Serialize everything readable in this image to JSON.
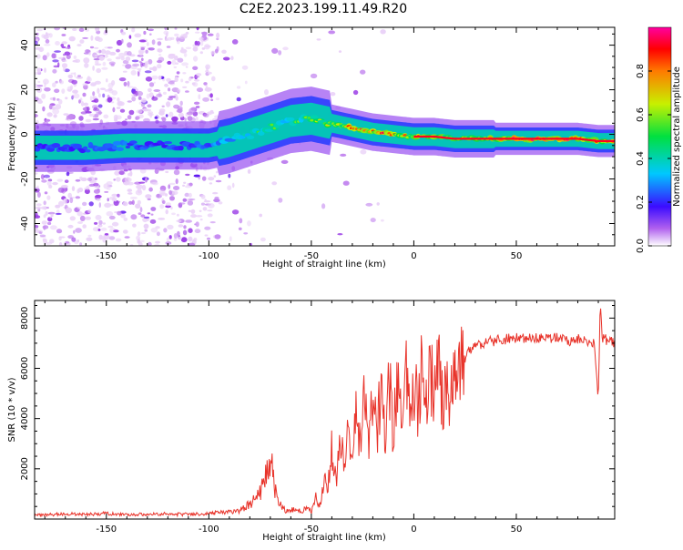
{
  "title": "C2E2.2023.199.11.49.R20",
  "chart_data": [
    {
      "type": "heatmap",
      "xlabel": "Height of straight line (km)",
      "ylabel": "Frequency (Hz)",
      "xlim": [
        -185,
        98
      ],
      "ylim": [
        -50,
        48
      ],
      "xticks": [
        -150,
        -100,
        -50,
        0,
        50
      ],
      "yticks": [
        -40,
        -20,
        0,
        20,
        40
      ],
      "colorbar": {
        "label": "Normalized spectral amplitude",
        "range": [
          0,
          1
        ],
        "ticks": [
          0.0,
          0.2,
          0.4,
          0.6,
          0.8
        ]
      },
      "ridge_track": {
        "x": [
          -185,
          -160,
          -140,
          -120,
          -100,
          -90,
          -80,
          -70,
          -60,
          -50,
          -40,
          -30,
          -20,
          -10,
          0,
          10,
          20,
          30,
          40,
          50,
          60,
          70,
          80,
          90,
          98
        ],
        "freq_hz": [
          -6,
          -6,
          -5,
          -5,
          -5,
          -3,
          0,
          3,
          6,
          7,
          5,
          3,
          1,
          0,
          -1,
          -1,
          -2,
          -2,
          -2,
          -2,
          -2,
          -2,
          -2,
          -3,
          -3
        ],
        "amplitude": [
          0.3,
          0.3,
          0.35,
          0.3,
          0.35,
          0.45,
          0.5,
          0.55,
          0.55,
          0.6,
          0.75,
          0.85,
          0.95,
          0.8,
          0.8,
          0.75,
          0.7,
          0.7,
          0.8,
          0.95,
          1.0,
          1.0,
          0.9,
          0.85,
          0.9
        ]
      }
    },
    {
      "type": "line",
      "xlabel": "Height of straight line (km)",
      "ylabel": "SNR (10 * v/v)",
      "xlim": [
        -185,
        98
      ],
      "ylim": [
        0,
        8700
      ],
      "xticks": [
        -150,
        -100,
        -50,
        0,
        50
      ],
      "yticks": [
        2000,
        4000,
        6000,
        8000
      ],
      "series": [
        {
          "name": "SNR",
          "color": "#e8332a",
          "x": [
            -185,
            -170,
            -160,
            -150,
            -140,
            -130,
            -120,
            -110,
            -100,
            -90,
            -85,
            -80,
            -76,
            -73,
            -70,
            -68,
            -66,
            -64,
            -62,
            -60,
            -58,
            -55,
            -52,
            -50,
            -48,
            -46,
            -44,
            -42,
            -40,
            -38,
            -36,
            -34,
            -32,
            -30,
            -28,
            -26,
            -24,
            -22,
            -20,
            -18,
            -16,
            -14,
            -12,
            -10,
            -8,
            -6,
            -4,
            -2,
            0,
            2,
            4,
            6,
            8,
            10,
            12,
            14,
            16,
            18,
            20,
            22,
            24,
            26,
            28,
            30,
            32,
            35,
            40,
            45,
            50,
            55,
            60,
            65,
            70,
            75,
            80,
            85,
            88,
            90,
            91,
            92,
            93,
            94,
            95,
            96,
            98
          ],
          "y": [
            150,
            200,
            180,
            220,
            170,
            190,
            200,
            180,
            220,
            280,
            320,
            600,
            900,
            1500,
            2600,
            1200,
            700,
            450,
            300,
            350,
            400,
            300,
            500,
            300,
            900,
            400,
            1600,
            1200,
            2800,
            1500,
            3200,
            2000,
            3800,
            2400,
            4600,
            2600,
            4900,
            2800,
            5100,
            3000,
            5600,
            3200,
            5500,
            3400,
            5200,
            3900,
            5800,
            4000,
            5600,
            4200,
            6400,
            4300,
            6200,
            4600,
            6300,
            4700,
            6000,
            4800,
            6300,
            5500,
            6400,
            6600,
            6800,
            6900,
            6950,
            7050,
            7100,
            7150,
            7200,
            7150,
            7200,
            7150,
            7250,
            7100,
            7150,
            7100,
            7000,
            4700,
            8700,
            7200,
            7300,
            7100,
            7000,
            7200,
            6900
          ]
        }
      ]
    }
  ]
}
